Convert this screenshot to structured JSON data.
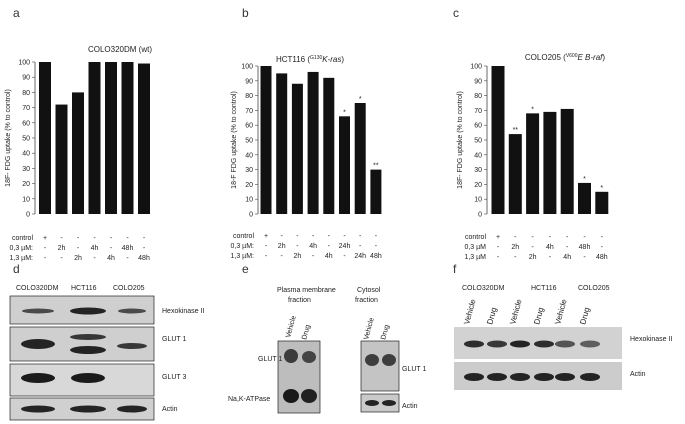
{
  "panel_letters": {
    "a": "a",
    "b": "b",
    "c": "c",
    "d": "d",
    "e": "e",
    "f": "f"
  },
  "chart_data": [
    {
      "type": "bar",
      "panel": "a",
      "title": "COLO320DM (wt)",
      "title_parts": {
        "main": "COLO320DM (wt)",
        "sup": "",
        "italic": ""
      },
      "ylabel": "18F- FDG uptake (% to control)",
      "ylim": [
        0,
        100
      ],
      "yticks": [
        "0",
        "10",
        "20",
        "30",
        "40",
        "50",
        "60",
        "70",
        "80",
        "90",
        "100"
      ],
      "categories": [
        "control",
        "0,3 µM 2h",
        "1,3 µM 2h",
        "0,3 µM 4h",
        "1,3 µM 4h",
        "0,3 µM 48h",
        "1,3 µM 48h"
      ],
      "values": [
        100,
        72,
        80,
        100,
        100,
        100,
        99
      ],
      "significance": [
        "",
        "",
        "",
        "",
        "",
        "",
        ""
      ],
      "table_rows": [
        {
          "label": "control",
          "cells": [
            "+",
            "-",
            "-",
            "-",
            "-",
            "-",
            "-"
          ]
        },
        {
          "label": "0,3 µM:",
          "cells": [
            "-",
            "2h",
            "-",
            "4h",
            "-",
            "48h",
            "-"
          ]
        },
        {
          "label": "1,3 µM:",
          "cells": [
            "-",
            "-",
            "2h",
            "-",
            "4h",
            "-",
            "48h"
          ]
        }
      ]
    },
    {
      "type": "bar",
      "panel": "b",
      "title": "HCT116 (G130K-ras)",
      "title_parts": {
        "main": "HCT116 (",
        "sup": "G130",
        "italic": "K-ras",
        "close": ")"
      },
      "ylabel": "18-F FDG uptake (% to control)",
      "ylim": [
        0,
        100
      ],
      "yticks": [
        "0",
        "10",
        "20",
        "30",
        "40",
        "50",
        "60",
        "70",
        "80",
        "90",
        "100"
      ],
      "categories": [
        "control",
        "0,3 µM 2h",
        "1,3 µM 2h",
        "0,3 µM 4h",
        "1,3 µM 4h",
        "0,3 µM 24h",
        "1,3 µM 24h",
        "1,3 µM 48h"
      ],
      "values": [
        100,
        95,
        88,
        96,
        92,
        66,
        75,
        30
      ],
      "significance": [
        "",
        "",
        "",
        "",
        "",
        "*",
        "*",
        "**"
      ],
      "table_rows": [
        {
          "label": "control",
          "cells": [
            "+",
            "-",
            "-",
            "-",
            "-",
            "-",
            "-",
            "-"
          ]
        },
        {
          "label": "0,3 µM:",
          "cells": [
            "-",
            "2h",
            "-",
            "4h",
            "-",
            "24h",
            "-",
            "-"
          ]
        },
        {
          "label": "1,3 µM:",
          "cells": [
            "-",
            "-",
            "2h",
            "-",
            "4h",
            "-",
            "24h",
            "48h"
          ]
        }
      ]
    },
    {
      "type": "bar",
      "panel": "c",
      "title": "COLO205 (V600E B-raf)",
      "title_parts": {
        "main": "COLO205 (",
        "sup": "V600",
        "italic": "E B-raf",
        "close": ")"
      },
      "ylabel": "18F- FDG uptake (% to control)",
      "ylim": [
        0,
        100
      ],
      "yticks": [
        "0",
        "10",
        "20",
        "30",
        "40",
        "50",
        "60",
        "70",
        "80",
        "90",
        "100"
      ],
      "categories": [
        "control",
        "0,3 µM 2h",
        "1,3 µM 2h",
        "0,3 µM 4h",
        "1,3 µM 4h",
        "0,3 µM 48h",
        "1,3 µM 48h"
      ],
      "values": [
        100,
        54,
        68,
        69,
        71,
        21,
        15
      ],
      "significance": [
        "",
        "**",
        "*",
        "",
        "",
        "*",
        "*"
      ],
      "table_rows": [
        {
          "label": "control",
          "cells": [
            "+",
            "-",
            "-",
            "-",
            "-",
            "-",
            "-"
          ]
        },
        {
          "label": "0,3 µM",
          "cells": [
            "-",
            "2h",
            "-",
            "4h",
            "-",
            "48h",
            "-"
          ]
        },
        {
          "label": "1,3 µM",
          "cells": [
            "-",
            "-",
            "2h",
            "-",
            "4h",
            "-",
            "48h"
          ]
        }
      ]
    }
  ],
  "blot_d": {
    "columns": [
      "COLO320DM",
      "HCT116",
      "COLO205"
    ],
    "rows": [
      "Hexokinase II",
      "GLUT 1",
      "GLUT 3",
      "Actin"
    ]
  },
  "blot_e": {
    "heading_pm": "Plasma membrane fraction",
    "heading_pm_line1": "Plasma membrane",
    "heading_pm_line2": "fraction",
    "heading_cy_line1": "Cytosol",
    "heading_cy_line2": "fraction",
    "lanes_pm": [
      "Vehicle",
      "Drug"
    ],
    "lanes_cy": [
      "Vehicle",
      "Drug"
    ],
    "pm_labels": [
      "GLUT 1",
      "Na,K-ATPase"
    ],
    "cy_labels": [
      "GLUT 1",
      "Actin"
    ]
  },
  "blot_f": {
    "groups": [
      "COLO320DM",
      "HCT116",
      "COLO205"
    ],
    "lanes": [
      "Vehicle",
      "Drug",
      "Vehicle",
      "Drug",
      "Vehicle",
      "Drug"
    ],
    "rows": [
      "Hexokinase II",
      "Actin"
    ]
  }
}
